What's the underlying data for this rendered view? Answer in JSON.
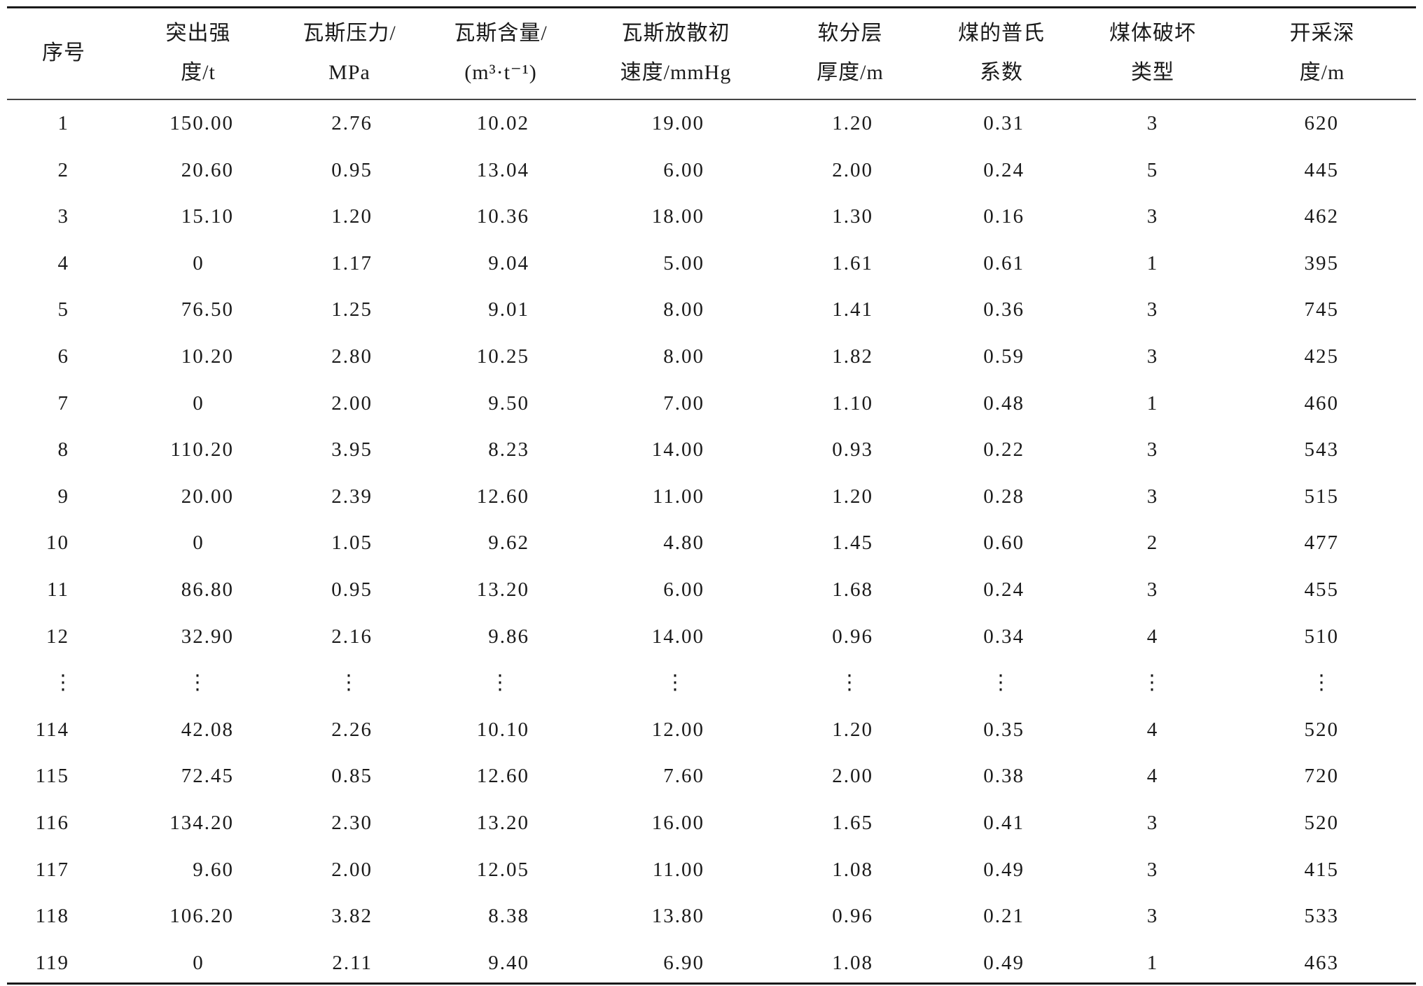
{
  "table": {
    "headers": [
      {
        "line1": "序号",
        "line2": ""
      },
      {
        "line1": "突出强",
        "line2": "度/t"
      },
      {
        "line1": "瓦斯压力/",
        "line2": "MPa"
      },
      {
        "line1": "瓦斯含量/",
        "line2": "(m³·t⁻¹)"
      },
      {
        "line1": "瓦斯放散初",
        "line2": "速度/mmHg"
      },
      {
        "line1": "软分层",
        "line2": "厚度/m"
      },
      {
        "line1": "煤的普氏",
        "line2": "系数"
      },
      {
        "line1": "煤体破坏",
        "line2": "类型"
      },
      {
        "line1": "开采深",
        "line2": "度/m"
      }
    ],
    "rows": [
      [
        "1",
        "150.00",
        "2.76",
        "10.02",
        "19.00",
        "1.20",
        "0.31",
        "3",
        "620"
      ],
      [
        "2",
        "20.60",
        "0.95",
        "13.04",
        "6.00",
        "2.00",
        "0.24",
        "5",
        "445"
      ],
      [
        "3",
        "15.10",
        "1.20",
        "10.36",
        "18.00",
        "1.30",
        "0.16",
        "3",
        "462"
      ],
      [
        "4",
        "0",
        "1.17",
        "9.04",
        "5.00",
        "1.61",
        "0.61",
        "1",
        "395"
      ],
      [
        "5",
        "76.50",
        "1.25",
        "9.01",
        "8.00",
        "1.41",
        "0.36",
        "3",
        "745"
      ],
      [
        "6",
        "10.20",
        "2.80",
        "10.25",
        "8.00",
        "1.82",
        "0.59",
        "3",
        "425"
      ],
      [
        "7",
        "0",
        "2.00",
        "9.50",
        "7.00",
        "1.10",
        "0.48",
        "1",
        "460"
      ],
      [
        "8",
        "110.20",
        "3.95",
        "8.23",
        "14.00",
        "0.93",
        "0.22",
        "3",
        "543"
      ],
      [
        "9",
        "20.00",
        "2.39",
        "12.60",
        "11.00",
        "1.20",
        "0.28",
        "3",
        "515"
      ],
      [
        "10",
        "0",
        "1.05",
        "9.62",
        "4.80",
        "1.45",
        "0.60",
        "2",
        "477"
      ],
      [
        "11",
        "86.80",
        "0.95",
        "13.20",
        "6.00",
        "1.68",
        "0.24",
        "3",
        "455"
      ],
      [
        "12",
        "32.90",
        "2.16",
        "9.86",
        "14.00",
        "0.96",
        "0.34",
        "4",
        "510"
      ],
      [
        "⋮",
        "⋮",
        "⋮",
        "⋮",
        "⋮",
        "⋮",
        "⋮",
        "⋮",
        "⋮"
      ],
      [
        "114",
        "42.08",
        "2.26",
        "10.10",
        "12.00",
        "1.20",
        "0.35",
        "4",
        "520"
      ],
      [
        "115",
        "72.45",
        "0.85",
        "12.60",
        "7.60",
        "2.00",
        "0.38",
        "4",
        "720"
      ],
      [
        "116",
        "134.20",
        "2.30",
        "13.20",
        "16.00",
        "1.65",
        "0.41",
        "3",
        "520"
      ],
      [
        "117",
        "9.60",
        "2.00",
        "12.05",
        "11.00",
        "1.08",
        "0.49",
        "3",
        "415"
      ],
      [
        "118",
        "106.20",
        "3.82",
        "8.38",
        "13.80",
        "0.96",
        "0.21",
        "3",
        "533"
      ],
      [
        "119",
        "0",
        "2.11",
        "9.40",
        "6.90",
        "1.08",
        "0.49",
        "1",
        "463"
      ]
    ]
  }
}
